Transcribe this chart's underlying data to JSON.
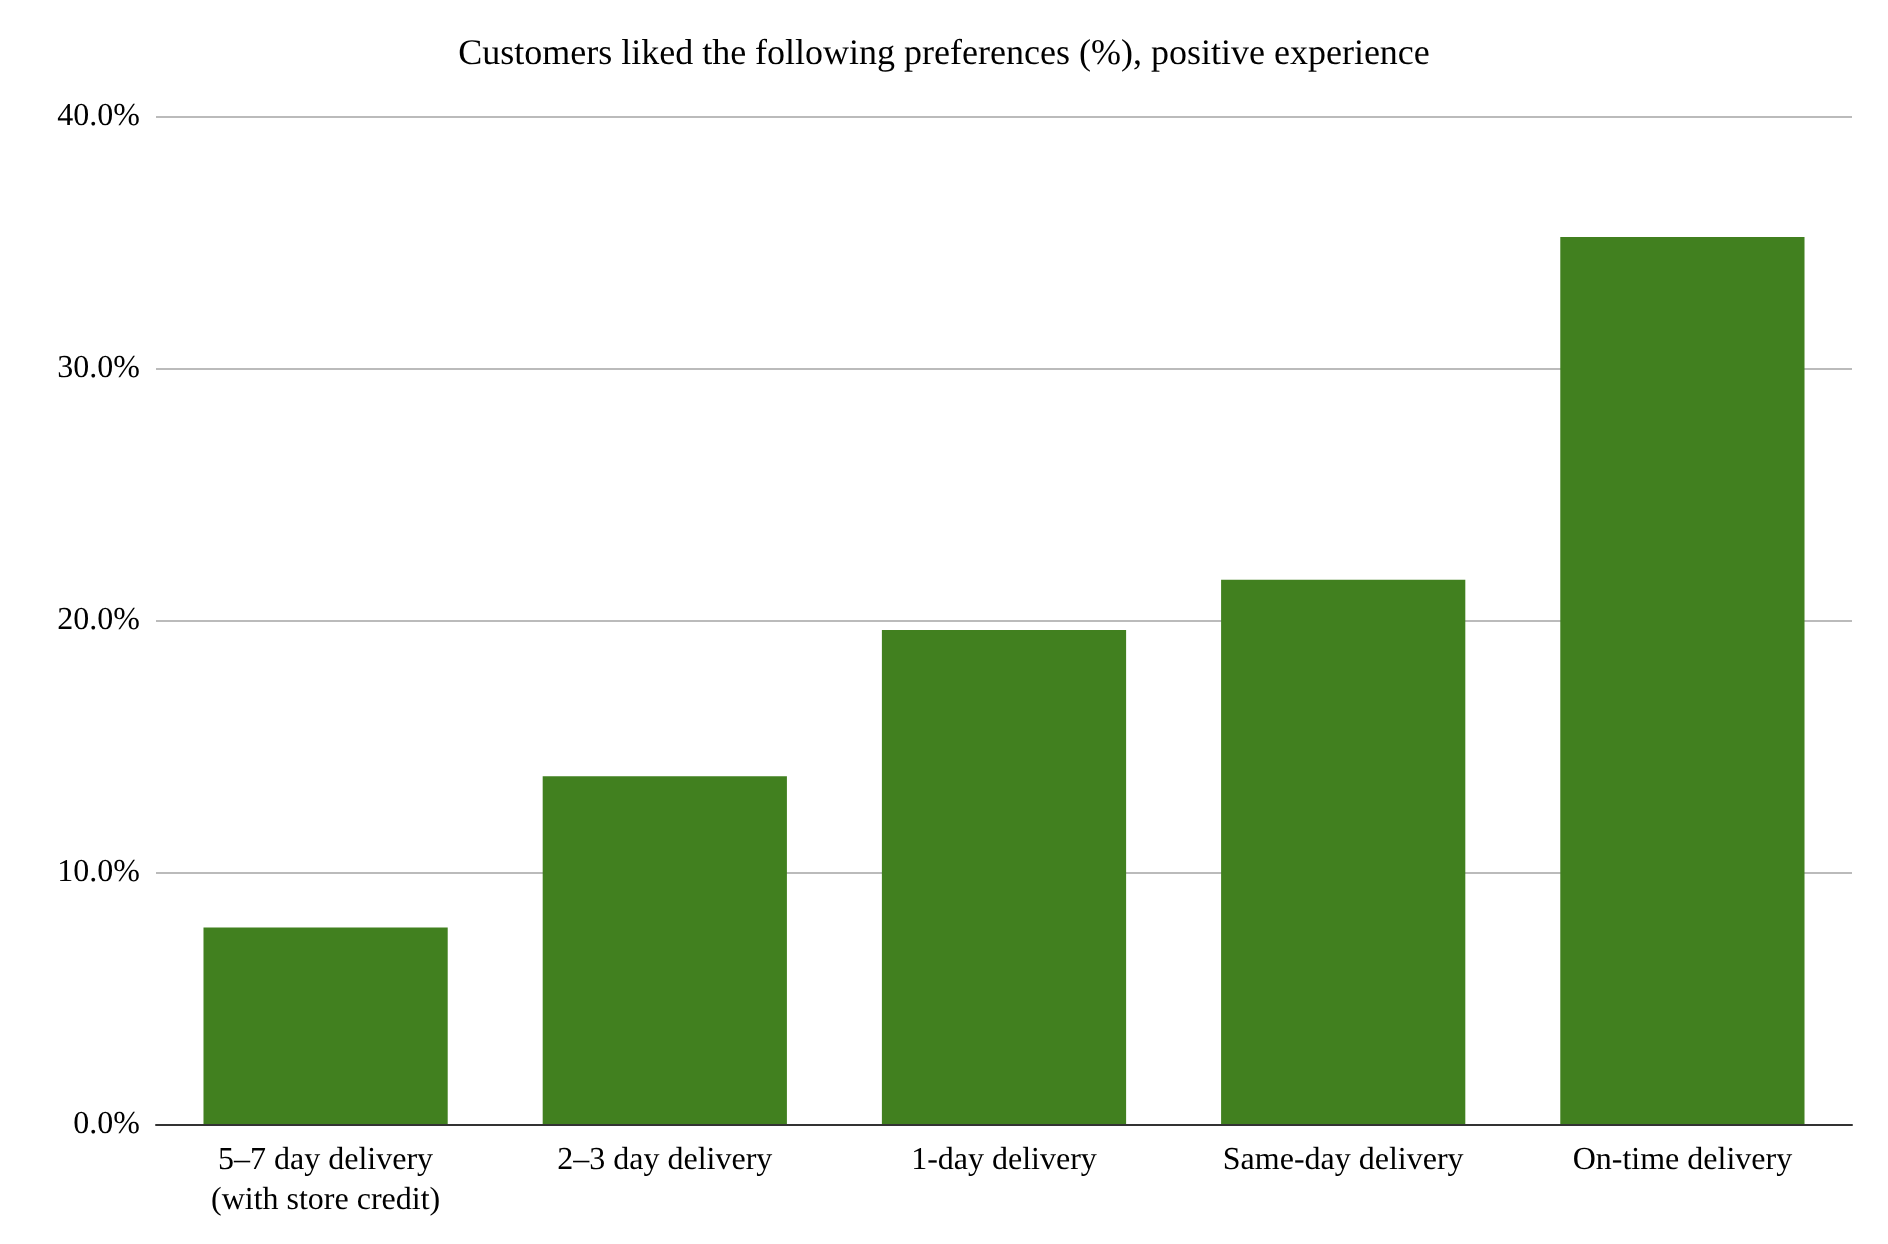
{
  "chart_data": {
    "type": "bar",
    "title": "Customers liked the following preferences (%), positive experience",
    "categories": [
      "5–7 day delivery\n(with store credit)",
      "2–3 day delivery",
      "1-day delivery",
      "Same-day delivery",
      "On-time delivery"
    ],
    "values": [
      7.8,
      13.8,
      19.6,
      21.6,
      35.2
    ],
    "color": "#41801f",
    "ylim": [
      0,
      40
    ],
    "yticks": [
      {
        "value": 0,
        "label": "0.0%"
      },
      {
        "value": 10,
        "label": "10.0%"
      },
      {
        "value": 20,
        "label": "20.0%"
      },
      {
        "value": 30,
        "label": "30.0%"
      },
      {
        "value": 40,
        "label": "40.0%"
      }
    ],
    "grid": "y"
  }
}
